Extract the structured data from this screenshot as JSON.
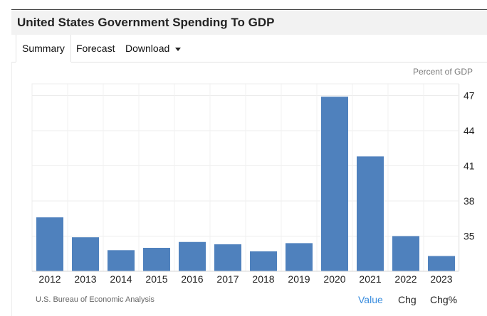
{
  "title": "United States Government Spending To GDP",
  "tabs": {
    "summary": "Summary",
    "forecast": "Forecast",
    "download": "Download"
  },
  "unit_label": "Percent of GDP",
  "source": "U.S. Bureau of Economic Analysis",
  "options": {
    "value": "Value",
    "chg": "Chg",
    "chg_pct": "Chg%"
  },
  "colors": {
    "bar": "#4f81bd",
    "active_option": "#3a8dde"
  },
  "chart_data": {
    "type": "bar",
    "categories": [
      "2012",
      "2013",
      "2014",
      "2015",
      "2016",
      "2017",
      "2018",
      "2019",
      "2020",
      "2021",
      "2022",
      "2023"
    ],
    "values": [
      36.6,
      34.9,
      33.8,
      34.0,
      34.5,
      34.3,
      33.7,
      34.4,
      46.9,
      41.8,
      35.0,
      33.3
    ],
    "ylim": [
      32,
      48
    ],
    "yticks": [
      35,
      38,
      41,
      44,
      47
    ],
    "ylabel": "",
    "xlabel": "",
    "grid": true,
    "y_axis_side": "right"
  }
}
